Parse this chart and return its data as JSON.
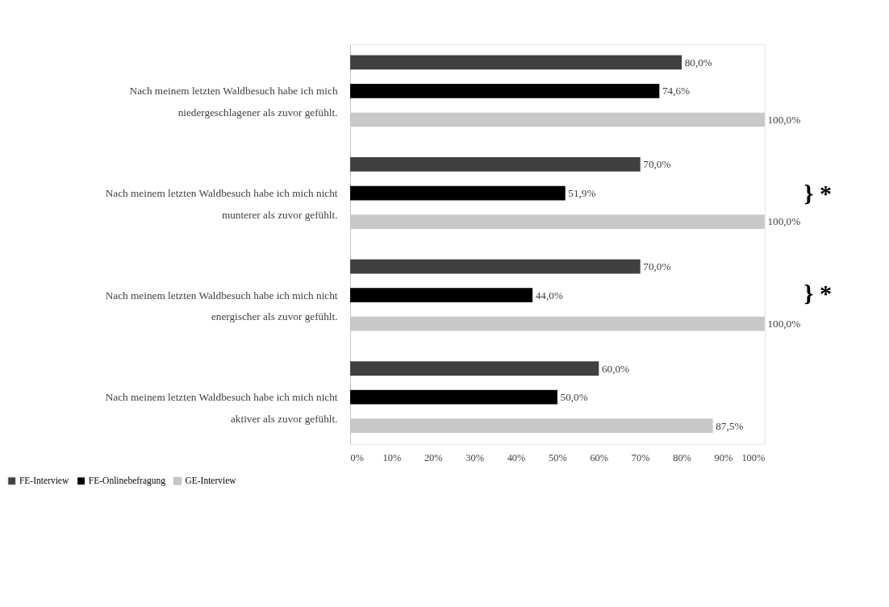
{
  "chart_data": {
    "type": "bar",
    "orientation": "horizontal",
    "categories": [
      "Nach meinem letzten Waldbesuch habe ich mich niedergeschlagener als zuvor gefühlt.",
      "Nach meinem letzten Waldbesuch habe ich mich nicht munterer als zuvor gefühlt.",
      "Nach meinem letzten Waldbesuch habe ich mich nicht energischer als zuvor gefühlt.",
      "Nach meinem letzten Waldbesuch habe ich mich nicht aktiver als zuvor gefühlt."
    ],
    "series": [
      {
        "name": "FE-Interview",
        "color": "#404040",
        "values": [
          80.0,
          70.0,
          70.0,
          60.0
        ],
        "value_labels": [
          "80,0%",
          "70,0%",
          "70,0%",
          "60,0%"
        ]
      },
      {
        "name": "FE-Onlinebefragung",
        "color": "#000000",
        "values": [
          74.6,
          51.9,
          44.0,
          50.0
        ],
        "value_labels": [
          "74,6%",
          "51,9%",
          "44,0%",
          "50,0%"
        ]
      },
      {
        "name": "GE-Interview",
        "color": "#c8c8c8",
        "values": [
          100.0,
          100.0,
          100.0,
          87.5
        ],
        "value_labels": [
          "100,0%",
          "100,0%",
          "100,0%",
          "87,5%"
        ]
      }
    ],
    "xlim": [
      0,
      100
    ],
    "xticks": [
      {
        "value": 0,
        "label": "0%"
      },
      {
        "value": 10,
        "label": "10%"
      },
      {
        "value": 20,
        "label": "20%"
      },
      {
        "value": 30,
        "label": "30%"
      },
      {
        "value": 40,
        "label": "40%"
      },
      {
        "value": 50,
        "label": "50%"
      },
      {
        "value": 60,
        "label": "60%"
      },
      {
        "value": 70,
        "label": "70%"
      },
      {
        "value": 80,
        "label": "80%"
      },
      {
        "value": 90,
        "label": "90%"
      },
      {
        "value": 100,
        "label": "100%"
      }
    ],
    "annotations": [
      "} *",
      "} *"
    ],
    "grid": false,
    "legend": "bottom left"
  }
}
